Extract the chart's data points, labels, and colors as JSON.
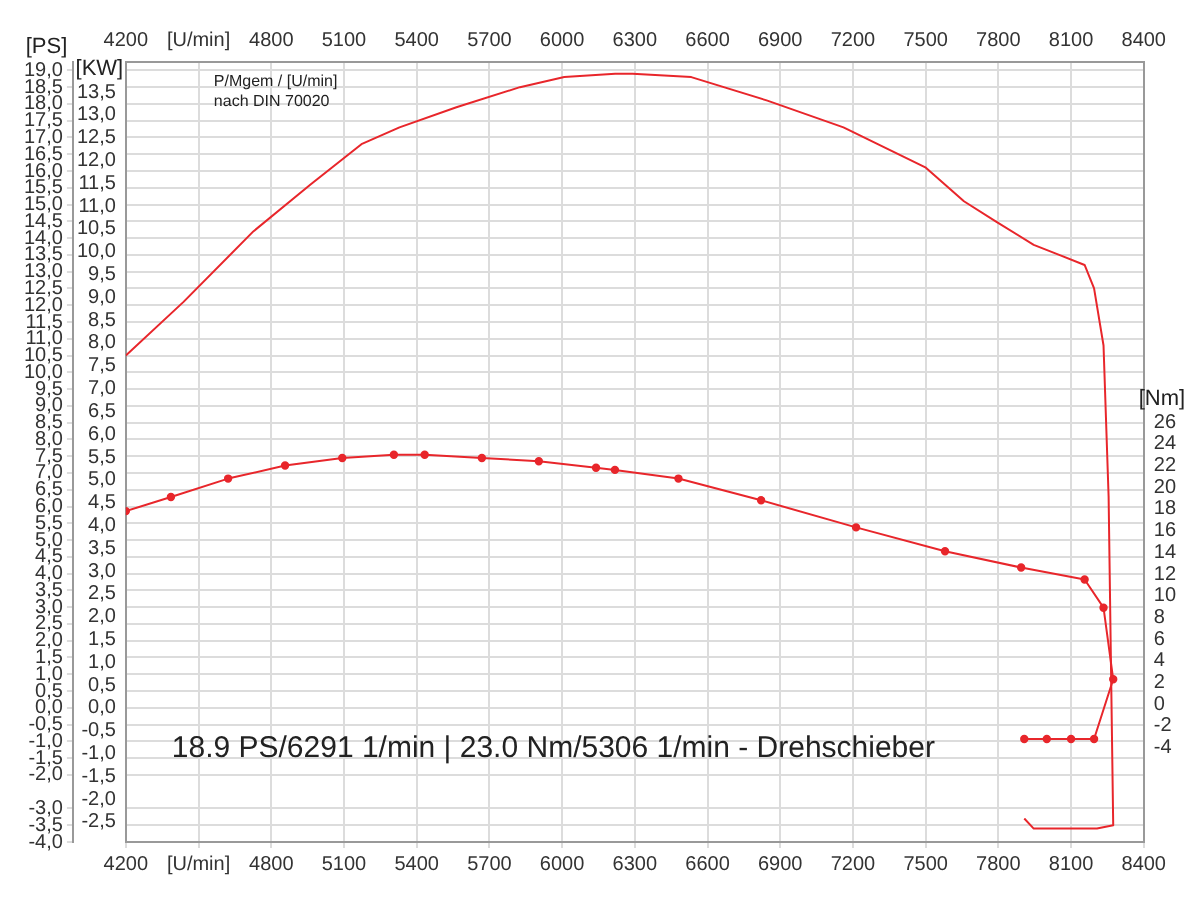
{
  "chart_data": {
    "type": "line",
    "xlim": [
      4200,
      8400
    ],
    "xticks": [
      4200,
      {
        "value": 4500,
        "label": "[U/min]"
      },
      4800,
      5100,
      5400,
      5700,
      6000,
      6300,
      6600,
      6900,
      7200,
      7500,
      7800,
      8100,
      8400
    ],
    "x2lim": [
      4200,
      8400
    ],
    "x2ticks": [
      4200,
      {
        "value": 4500,
        "label": "[U/min]"
      },
      4800,
      5100,
      5400,
      5700,
      6000,
      6300,
      6600,
      6900,
      7200,
      7500,
      7800,
      8100,
      8400
    ],
    "ylabel": "[KW]",
    "ylim": [
      -2.94,
      14.16
    ],
    "yticks": [
      {
        "value": -2.5,
        "label": "-2,5"
      },
      {
        "value": -2,
        "label": "-2,0"
      },
      {
        "value": -1.5,
        "label": "-1,5"
      },
      {
        "value": -1,
        "label": "-1,0"
      },
      {
        "value": -0.5,
        "label": "-0,5"
      },
      {
        "value": 0,
        "label": "0,0"
      },
      {
        "value": 0.5,
        "label": "0,5"
      },
      {
        "value": 1,
        "label": "1,0"
      },
      {
        "value": 1.5,
        "label": "1,5"
      },
      {
        "value": 2,
        "label": "2,0"
      },
      {
        "value": 2.5,
        "label": "2,5"
      },
      {
        "value": 3,
        "label": "3,0"
      },
      {
        "value": 3.5,
        "label": "3,5"
      },
      {
        "value": 4,
        "label": "4,0"
      },
      {
        "value": 4.5,
        "label": "4,5"
      },
      {
        "value": 5,
        "label": "5,0"
      },
      {
        "value": 5.5,
        "label": "5,5"
      },
      {
        "value": 6,
        "label": "6,0"
      },
      {
        "value": 6.5,
        "label": "6,5"
      },
      {
        "value": 7,
        "label": "7,0"
      },
      {
        "value": 7.5,
        "label": "7,5"
      },
      {
        "value": 8,
        "label": "8,0"
      },
      {
        "value": 8.5,
        "label": "8,5"
      },
      {
        "value": 9,
        "label": "9,0"
      },
      {
        "value": 9.5,
        "label": "9,5"
      },
      {
        "value": 10,
        "label": "10,0"
      },
      {
        "value": 10.5,
        "label": "10,5"
      },
      {
        "value": 11,
        "label": "11,0"
      },
      {
        "value": 11.5,
        "label": "11,5"
      },
      {
        "value": 12,
        "label": "12,0"
      },
      {
        "value": 12.5,
        "label": "12,5"
      },
      {
        "value": 13,
        "label": "13,0"
      },
      {
        "value": 13.5,
        "label": "13,5"
      }
    ],
    "y2label": "[PS]",
    "y2lim": [
      -4,
      19.25
    ],
    "y2ticks": [
      {
        "value": -4,
        "label": "-4,0"
      },
      {
        "value": -3.5,
        "label": "-3,5"
      },
      {
        "value": -3,
        "label": "-3,0"
      },
      {
        "value": -2,
        "label": "-2,0"
      },
      {
        "value": -1.5,
        "label": "-1,5"
      },
      {
        "value": -1,
        "label": "-1,0"
      },
      {
        "value": -0.5,
        "label": "-0,5"
      },
      {
        "value": 0,
        "label": "0,0"
      },
      {
        "value": 0.5,
        "label": "0,5"
      },
      {
        "value": 1,
        "label": "1,0"
      },
      {
        "value": 1.5,
        "label": "1,5"
      },
      {
        "value": 2,
        "label": "2,0"
      },
      {
        "value": 2.5,
        "label": "2,5"
      },
      {
        "value": 3,
        "label": "3,0"
      },
      {
        "value": 3.5,
        "label": "3,5"
      },
      {
        "value": 4,
        "label": "4,0"
      },
      {
        "value": 4.5,
        "label": "4,5"
      },
      {
        "value": 5,
        "label": "5,0"
      },
      {
        "value": 5.5,
        "label": "5,5"
      },
      {
        "value": 6,
        "label": "6,0"
      },
      {
        "value": 6.5,
        "label": "6,5"
      },
      {
        "value": 7,
        "label": "7,0"
      },
      {
        "value": 7.5,
        "label": "7,5"
      },
      {
        "value": 8,
        "label": "8,0"
      },
      {
        "value": 8.5,
        "label": "8,5"
      },
      {
        "value": 9,
        "label": "9,0"
      },
      {
        "value": 9.5,
        "label": "9,5"
      },
      {
        "value": 10,
        "label": "10,0"
      },
      {
        "value": 10.5,
        "label": "10,5"
      },
      {
        "value": 11,
        "label": "11,0"
      },
      {
        "value": 11.5,
        "label": "11,5"
      },
      {
        "value": 12,
        "label": "12,0"
      },
      {
        "value": 12.5,
        "label": "12,5"
      },
      {
        "value": 13,
        "label": "13,0"
      },
      {
        "value": 13.5,
        "label": "13,5"
      },
      {
        "value": 14,
        "label": "14,0"
      },
      {
        "value": 14.5,
        "label": "14,5"
      },
      {
        "value": 15,
        "label": "15,0"
      },
      {
        "value": 15.5,
        "label": "15,5"
      },
      {
        "value": 16,
        "label": "16,0"
      },
      {
        "value": 16.5,
        "label": "16,5"
      },
      {
        "value": 17,
        "label": "17,0"
      },
      {
        "value": 17.5,
        "label": "17,5"
      },
      {
        "value": 18,
        "label": "18,0"
      },
      {
        "value": 18.5,
        "label": "18,5"
      },
      {
        "value": 19,
        "label": "19,0"
      }
    ],
    "y3label": "[Nm]",
    "y3lim": [
      -12.7,
      59.2
    ],
    "y3ticks": [
      -4,
      -2,
      0,
      2,
      4,
      6,
      8,
      10,
      12,
      14,
      16,
      18,
      20,
      22,
      24,
      26
    ],
    "grid": true,
    "legend": false,
    "series": [
      {
        "color": "#e8262b",
        "axis": "y2",
        "marker": "none",
        "x": [
          4200,
          4438,
          4726,
          4962,
          5172,
          5329,
          5564,
          5826,
          6009,
          6219,
          6291,
          6533,
          6847,
          7161,
          7501,
          7658,
          7789,
          7946,
          8051,
          8156,
          8195,
          8234,
          8255,
          8274,
          8207,
          8051,
          7946,
          7907
        ],
        "values": [
          10.5,
          12.1,
          14.2,
          15.6,
          16.8,
          17.3,
          17.9,
          18.5,
          18.8,
          18.9,
          18.9,
          18.8,
          18.1,
          17.3,
          16.1,
          15.1,
          14.5,
          13.8,
          13.5,
          13.2,
          12.5,
          10.8,
          6.3,
          -3.5,
          -3.6,
          -3.6,
          -3.6,
          -3.3
        ]
      },
      {
        "color": "#e8262b",
        "axis": "y3",
        "marker": "circle",
        "x": [
          4200,
          4386,
          4622,
          4857,
          5093,
          5306,
          5433,
          5669,
          5904,
          6140,
          6218,
          6480,
          6821,
          7213,
          7580,
          7894,
          8156,
          8234,
          8274,
          8195,
          8100,
          8000,
          7907
        ],
        "values": [
          17.8,
          19.1,
          20.8,
          22.0,
          22.7,
          23.0,
          23.0,
          22.7,
          22.4,
          21.8,
          21.6,
          20.8,
          18.8,
          16.3,
          14.1,
          12.6,
          11.5,
          8.9,
          2.3,
          -3.2,
          -3.2,
          -3.2,
          -3.2
        ]
      }
    ],
    "annotations": [
      "P/Mgem / [U/min]",
      "nach DIN 70020",
      "18.9 PS/6291 1/min | 23.0 Nm/5306 1/min - Drehschieber"
    ]
  }
}
